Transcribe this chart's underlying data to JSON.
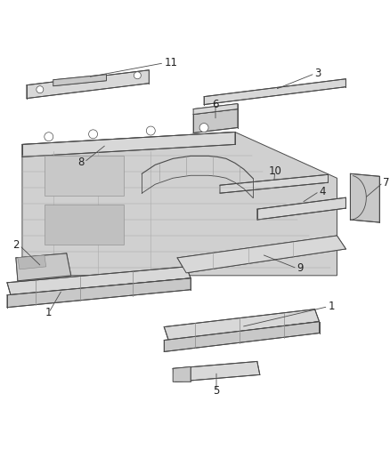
{
  "bg_color": "#ffffff",
  "line_color": "#4a4a4a",
  "fill_light": "#d8d8d8",
  "fill_mid": "#c8c8c8",
  "fill_dark": "#b8b8b8",
  "font_size": 8.5,
  "lw": 0.7
}
